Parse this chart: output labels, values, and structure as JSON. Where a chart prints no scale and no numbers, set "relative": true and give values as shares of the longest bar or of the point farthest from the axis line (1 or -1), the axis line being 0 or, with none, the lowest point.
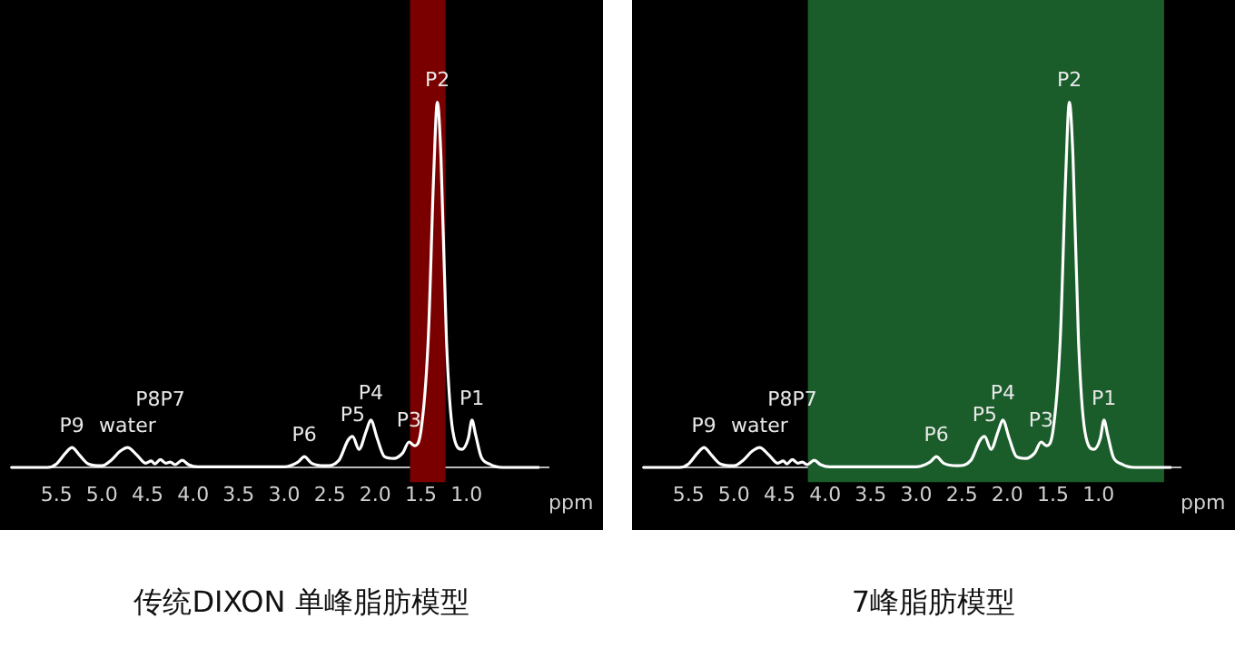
{
  "chart_data": [
    {
      "type": "line",
      "title": "传统DIXON  单峰脂肪模型",
      "xlabel": "ppm",
      "relative": true,
      "marker": "none",
      "legend": false,
      "xlim": [
        6.0,
        0.1
      ],
      "xticks": [
        5.5,
        {
          "value": 5,
          "label": "5.0"
        },
        4.5,
        {
          "value": 4,
          "label": "4.0"
        },
        3.5,
        {
          "value": 3,
          "label": "3.0"
        },
        2.5,
        {
          "value": 2,
          "label": "2.0"
        },
        1.5,
        {
          "value": 1,
          "label": "1.0"
        }
      ],
      "series": [
        {
          "color": "#ffffff",
          "x": [
            6.0,
            5.6,
            5.5,
            5.4,
            5.33,
            5.25,
            5.15,
            5.0,
            4.9,
            4.8,
            4.72,
            4.62,
            4.52,
            4.46,
            4.42,
            4.36,
            4.3,
            4.25,
            4.2,
            4.12,
            4.05,
            3.95,
            3.0,
            2.85,
            2.78,
            2.7,
            2.55,
            2.4,
            2.3,
            2.25,
            2.18,
            2.1,
            2.05,
            1.98,
            1.9,
            1.8,
            1.7,
            1.63,
            1.57,
            1.5,
            1.42,
            1.36,
            1.32,
            1.28,
            1.22,
            1.15,
            1.05,
            0.98,
            0.94,
            0.9,
            0.84,
            0.75,
            0.6,
            0.2
          ],
          "values": [
            0,
            0,
            0.01,
            0.04,
            0.055,
            0.035,
            0.01,
            0.005,
            0.02,
            0.045,
            0.055,
            0.035,
            0.012,
            0.018,
            0.01,
            0.022,
            0.012,
            0.015,
            0.008,
            0.02,
            0.008,
            0.002,
            0.002,
            0.015,
            0.03,
            0.012,
            0.005,
            0.02,
            0.075,
            0.085,
            0.05,
            0.1,
            0.13,
            0.08,
            0.03,
            0.025,
            0.04,
            0.07,
            0.06,
            0.1,
            0.35,
            0.8,
            1.0,
            0.85,
            0.35,
            0.1,
            0.05,
            0.08,
            0.13,
            0.09,
            0.03,
            0.01,
            0,
            0
          ]
        }
      ],
      "bands": [
        {
          "axis": "x",
          "from": 1.62,
          "to": 1.23,
          "color": "#7a0000"
        }
      ],
      "annotations": [
        {
          "text": "P9",
          "x": 5.33,
          "y": 0.055
        },
        {
          "text": "water",
          "x": 4.72,
          "y": 0.055
        },
        {
          "text": "P8P7",
          "x": 4.36,
          "y": 0.022
        },
        {
          "text": "P6",
          "x": 2.78,
          "y": 0.03
        },
        {
          "text": "P5",
          "x": 2.25,
          "y": 0.085
        },
        {
          "text": "P4",
          "x": 2.05,
          "y": 0.13
        },
        {
          "text": "P3",
          "x": 1.63,
          "y": 0.07
        },
        {
          "text": "P2",
          "x": 1.32,
          "y": 1.0
        },
        {
          "text": "P1",
          "x": 0.94,
          "y": 0.13
        }
      ]
    },
    {
      "type": "line",
      "title": "7峰脂肪模型",
      "xlabel": "ppm",
      "relative": true,
      "marker": "none",
      "legend": false,
      "xlim": [
        6.0,
        0.1
      ],
      "xticks": [
        5.5,
        {
          "value": 5,
          "label": "5.0"
        },
        4.5,
        {
          "value": 4,
          "label": "4.0"
        },
        3.5,
        {
          "value": 3,
          "label": "3.0"
        },
        2.5,
        {
          "value": 2,
          "label": "2.0"
        },
        1.5,
        {
          "value": 1,
          "label": "1.0"
        }
      ],
      "series": [
        {
          "color": "#ffffff",
          "x": [
            6.0,
            5.6,
            5.5,
            5.4,
            5.33,
            5.25,
            5.15,
            5.0,
            4.9,
            4.8,
            4.72,
            4.62,
            4.52,
            4.46,
            4.42,
            4.36,
            4.3,
            4.25,
            4.2,
            4.12,
            4.05,
            3.95,
            3.0,
            2.85,
            2.78,
            2.7,
            2.55,
            2.4,
            2.3,
            2.25,
            2.18,
            2.1,
            2.05,
            1.98,
            1.9,
            1.8,
            1.7,
            1.63,
            1.57,
            1.5,
            1.42,
            1.36,
            1.32,
            1.28,
            1.22,
            1.15,
            1.05,
            0.98,
            0.94,
            0.9,
            0.84,
            0.75,
            0.6,
            0.2
          ],
          "values": [
            0,
            0,
            0.01,
            0.04,
            0.055,
            0.035,
            0.01,
            0.005,
            0.02,
            0.045,
            0.055,
            0.035,
            0.012,
            0.018,
            0.01,
            0.022,
            0.012,
            0.015,
            0.008,
            0.02,
            0.008,
            0.002,
            0.002,
            0.015,
            0.03,
            0.012,
            0.005,
            0.02,
            0.075,
            0.085,
            0.05,
            0.1,
            0.13,
            0.08,
            0.03,
            0.025,
            0.04,
            0.07,
            0.06,
            0.1,
            0.35,
            0.8,
            1.0,
            0.85,
            0.35,
            0.1,
            0.05,
            0.08,
            0.13,
            0.09,
            0.03,
            0.01,
            0,
            0
          ]
        }
      ],
      "bands": [
        {
          "axis": "x",
          "from": 4.19,
          "to": 0.28,
          "color": "#1a5c2a"
        }
      ],
      "annotations": [
        {
          "text": "P9",
          "x": 5.33,
          "y": 0.055
        },
        {
          "text": "water",
          "x": 4.72,
          "y": 0.055
        },
        {
          "text": "P8P7",
          "x": 4.36,
          "y": 0.022
        },
        {
          "text": "P6",
          "x": 2.78,
          "y": 0.03
        },
        {
          "text": "P5",
          "x": 2.25,
          "y": 0.085
        },
        {
          "text": "P4",
          "x": 2.05,
          "y": 0.13
        },
        {
          "text": "P3",
          "x": 1.63,
          "y": 0.07
        },
        {
          "text": "P2",
          "x": 1.32,
          "y": 1.0
        },
        {
          "text": "P1",
          "x": 0.94,
          "y": 0.13
        }
      ]
    }
  ]
}
